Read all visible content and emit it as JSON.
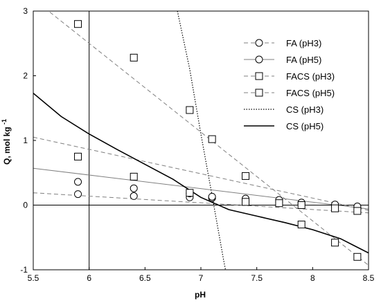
{
  "chart_data": {
    "type": "line",
    "xlabel": "pH",
    "ylabel_main": "Q, mol kg",
    "ylabel_sup": "-1",
    "xlim": [
      5.5,
      8.5
    ],
    "ylim": [
      -1,
      3
    ],
    "xticks": [
      "5.5",
      "6",
      "6.5",
      "7",
      "7.5",
      "8",
      "8.5"
    ],
    "yticks": [
      "-1",
      "0",
      "1",
      "2",
      "3"
    ],
    "grid": false,
    "legend_position": "top-right",
    "reference_lines": {
      "x": 6,
      "y": 0
    },
    "series": [
      {
        "name": "FA (pH3)",
        "marker": "circle",
        "line": "dashed",
        "color": "#7f7f7f",
        "line_x": [
          5.5,
          8.5
        ],
        "line_y": [
          0.19,
          -0.12
        ],
        "x": [
          5.9,
          6.4,
          6.9,
          7.1,
          7.4,
          7.7,
          7.9,
          8.2,
          8.4
        ],
        "y": [
          0.17,
          0.14,
          0.12,
          0.11,
          0.08,
          0.05,
          0.02,
          -0.01,
          -0.03
        ]
      },
      {
        "name": "FA (pH5)",
        "marker": "circle",
        "line": "solid",
        "color": "#7f7f7f",
        "line_x": [
          5.5,
          8.5
        ],
        "line_y": [
          0.57,
          -0.06
        ],
        "x": [
          5.9,
          6.4,
          6.9,
          7.1,
          7.4,
          7.7,
          7.9,
          8.2,
          8.4
        ],
        "y": [
          0.36,
          0.26,
          0.18,
          0.13,
          0.1,
          0.08,
          0.04,
          0.01,
          -0.02
        ]
      },
      {
        "name": "FACS (pH3)",
        "marker": "square",
        "line": "dashed",
        "color": "#7f7f7f",
        "line_x": [
          5.6,
          8.5
        ],
        "line_y": [
          3.05,
          -0.93
        ],
        "x": [
          5.9,
          6.4,
          6.9,
          7.1,
          7.4,
          7.9,
          8.2,
          8.4
        ],
        "y": [
          2.8,
          2.28,
          1.47,
          1.02,
          0.45,
          -0.3,
          -0.58,
          -0.8
        ]
      },
      {
        "name": "FACS (pH5)",
        "marker": "square",
        "line": "dashed",
        "color": "#7f7f7f",
        "line_x": [
          5.5,
          8.5
        ],
        "line_y": [
          1.05,
          -0.08
        ],
        "x": [
          5.9,
          6.4,
          6.9,
          7.4,
          7.7,
          7.9,
          8.2,
          8.4
        ],
        "y": [
          0.75,
          0.44,
          0.19,
          0.05,
          0.03,
          0.0,
          -0.05,
          -0.09
        ]
      },
      {
        "name": "CS (pH3)",
        "marker": "none",
        "line": "dotted",
        "color": "#000000",
        "x": [
          6.79,
          6.9,
          7.0,
          7.1,
          7.2,
          7.22
        ],
        "y": [
          3.0,
          2.1,
          1.1,
          0.15,
          -0.82,
          -1.0
        ]
      },
      {
        "name": "CS (pH5)",
        "marker": "none",
        "line": "solid",
        "color": "#000000",
        "x": [
          5.5,
          5.75,
          6.0,
          6.25,
          6.5,
          6.75,
          7.0,
          7.25,
          7.5,
          7.75,
          8.0,
          8.25,
          8.5
        ],
        "y": [
          1.73,
          1.37,
          1.1,
          0.86,
          0.63,
          0.4,
          0.12,
          -0.07,
          -0.17,
          -0.27,
          -0.38,
          -0.52,
          -0.74
        ]
      }
    ]
  }
}
